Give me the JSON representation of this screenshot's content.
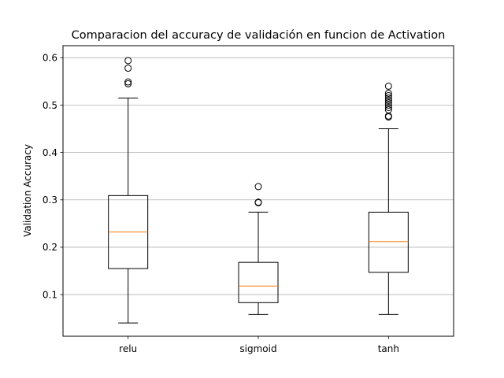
{
  "chart_data": {
    "type": "box",
    "title": "Comparacion del accuracy de validación en funcion de Activation",
    "xlabel": "",
    "ylabel": "Validation Accuracy",
    "categories": [
      "relu",
      "sigmoid",
      "tanh"
    ],
    "ylim": [
      0.012,
      0.6255
    ],
    "yticks": [
      0.1,
      0.2,
      0.3,
      0.4,
      0.5,
      0.6
    ],
    "ytick_labels": [
      "0.1",
      "0.2",
      "0.3",
      "0.4",
      "0.5",
      "0.6"
    ],
    "grid": "horizontal",
    "boxes": [
      {
        "category": "relu",
        "whisker_low": 0.04,
        "q1": 0.155,
        "median": 0.232,
        "q3": 0.309,
        "whisker_high": 0.515,
        "outliers": [
          0.545,
          0.549,
          0.578,
          0.594
        ]
      },
      {
        "category": "sigmoid",
        "whisker_low": 0.058,
        "q1": 0.083,
        "median": 0.118,
        "q3": 0.168,
        "whisker_high": 0.274,
        "outliers": [
          0.294,
          0.295,
          0.328
        ]
      },
      {
        "category": "tanh",
        "whisker_low": 0.058,
        "q1": 0.147,
        "median": 0.212,
        "q3": 0.274,
        "whisker_high": 0.45,
        "outliers": [
          0.475,
          0.477,
          0.49,
          0.495,
          0.5,
          0.505,
          0.51,
          0.515,
          0.52,
          0.525,
          0.54
        ]
      }
    ],
    "colors": {
      "box": "#000000",
      "median": "#ff7f0e",
      "grid": "#b0b0b0"
    }
  }
}
